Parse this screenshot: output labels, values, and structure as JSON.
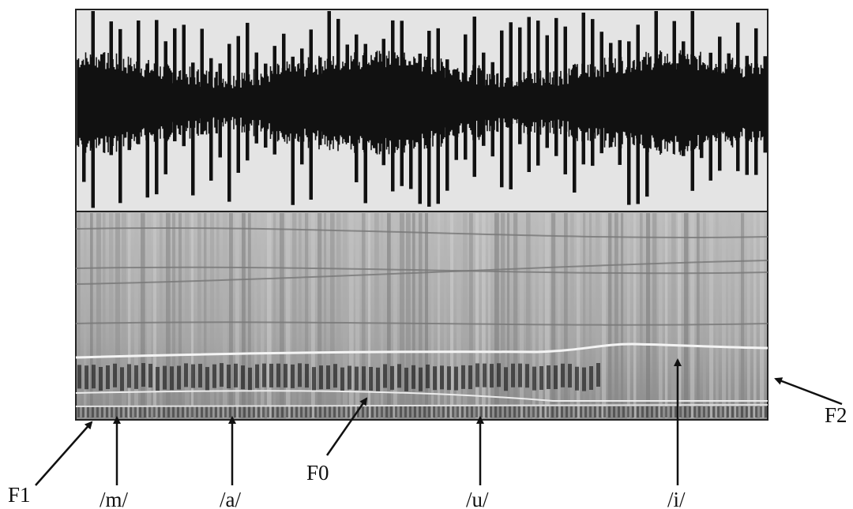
{
  "annotations": {
    "f1": "F1",
    "m": "/m/",
    "a": "/a/",
    "f0": "F0",
    "u": "/u/",
    "i": "/i/",
    "f2": "F2"
  }
}
